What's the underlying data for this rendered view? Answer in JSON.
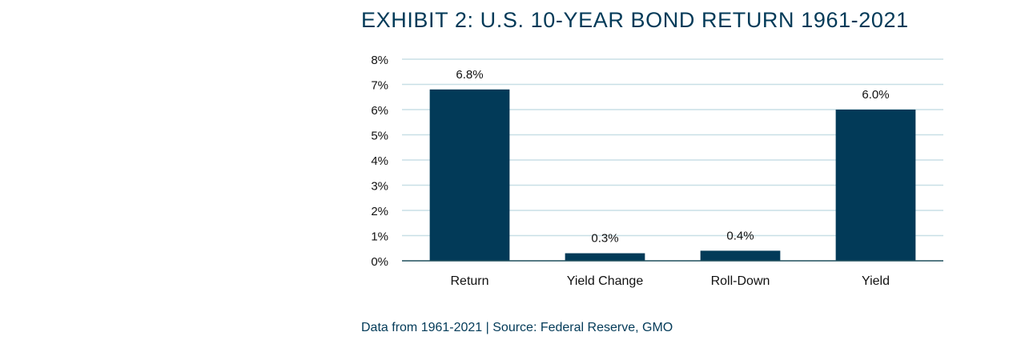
{
  "colors": {
    "bar": "#023a58",
    "title": "#023a58",
    "source": "#023a58",
    "grid": "#c8dfe6",
    "axis": "#1f4f5c",
    "text": "#111111"
  },
  "chart_data": {
    "type": "bar",
    "title": "EXHIBIT 2: U.S. 10-YEAR BOND RETURN 1961-2021",
    "categories": [
      "Return",
      "Yield Change",
      "Roll-Down",
      "Yield"
    ],
    "values": [
      6.8,
      0.3,
      0.4,
      6.0
    ],
    "data_labels": [
      "6.8%",
      "0.3%",
      "0.4%",
      "6.0%"
    ],
    "ylim": [
      0,
      8
    ],
    "y_ticks": [
      0,
      1,
      2,
      3,
      4,
      5,
      6,
      7,
      8
    ],
    "y_tick_labels": [
      "0%",
      "1%",
      "2%",
      "3%",
      "4%",
      "5%",
      "6%",
      "7%",
      "8%"
    ],
    "xlabel": "",
    "ylabel": "",
    "grid": true,
    "legend": "none"
  },
  "footer": {
    "source": "Data from 1961-2021 | Source: Federal Reserve, GMO"
  }
}
